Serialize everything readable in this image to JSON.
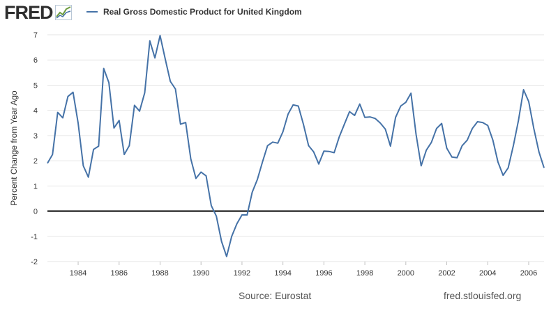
{
  "header": {
    "logo_text": "FRED",
    "series_title": "Real Gross Domestic Product for United Kingdom",
    "series_color": "#4572a7"
  },
  "footer": {
    "source": "Source: Eurostat",
    "site": "fred.stlouisfed.org"
  },
  "chart_data": {
    "type": "line",
    "title": "Real Gross Domestic Product for United Kingdom",
    "xlabel": "",
    "ylabel": "Percent Change from Year Ago",
    "xlim": [
      1982.5,
      2006.75
    ],
    "ylim": [
      -2,
      7
    ],
    "yticks": [
      -2,
      -1,
      0,
      1,
      2,
      3,
      4,
      5,
      6,
      7
    ],
    "xticks": [
      1984,
      1986,
      1988,
      1990,
      1992,
      1994,
      1996,
      1998,
      2000,
      2002,
      2004,
      2006
    ],
    "grid": true,
    "zero_line": true,
    "series": [
      {
        "name": "Real Gross Domestic Product for United Kingdom",
        "color": "#4572a7",
        "x": [
          1982.5,
          1982.75,
          1983,
          1983.25,
          1983.5,
          1983.75,
          1984,
          1984.25,
          1984.5,
          1984.75,
          1985,
          1985.25,
          1985.5,
          1985.75,
          1986,
          1986.25,
          1986.5,
          1986.75,
          1987,
          1987.25,
          1987.5,
          1987.75,
          1988,
          1988.25,
          1988.5,
          1988.75,
          1989,
          1989.25,
          1989.5,
          1989.75,
          1990,
          1990.25,
          1990.5,
          1990.75,
          1991,
          1991.25,
          1991.5,
          1991.75,
          1992,
          1992.25,
          1992.5,
          1992.75,
          1993,
          1993.25,
          1993.5,
          1993.75,
          1994,
          1994.25,
          1994.5,
          1994.75,
          1995,
          1995.25,
          1995.5,
          1995.75,
          1996,
          1996.25,
          1996.5,
          1996.75,
          1997,
          1997.25,
          1997.5,
          1997.75,
          1998,
          1998.25,
          1998.5,
          1998.75,
          1999,
          1999.25,
          1999.5,
          1999.75,
          2000,
          2000.25,
          2000.5,
          2000.75,
          2001,
          2001.25,
          2001.5,
          2001.75,
          2002,
          2002.25,
          2002.5,
          2002.75,
          2003,
          2003.25,
          2003.5,
          2003.75,
          2004,
          2004.25,
          2004.5,
          2004.75,
          2005,
          2005.25,
          2005.5,
          2005.75,
          2006,
          2006.25,
          2006.5,
          2006.75
        ],
        "values": [
          1.9,
          2.25,
          3.92,
          3.7,
          4.55,
          4.72,
          3.5,
          1.8,
          1.35,
          2.45,
          2.58,
          5.66,
          5.1,
          3.3,
          3.6,
          2.25,
          2.6,
          4.2,
          3.97,
          4.7,
          6.76,
          6.08,
          6.97,
          6.05,
          5.15,
          4.85,
          3.45,
          3.52,
          2.08,
          1.3,
          1.55,
          1.4,
          0.22,
          -0.2,
          -1.2,
          -1.8,
          -1.0,
          -0.5,
          -0.15,
          -0.15,
          0.75,
          1.25,
          1.95,
          2.6,
          2.74,
          2.7,
          3.15,
          3.85,
          4.22,
          4.17,
          3.45,
          2.6,
          2.35,
          1.87,
          2.38,
          2.37,
          2.32,
          2.95,
          3.45,
          3.95,
          3.8,
          4.25,
          3.72,
          3.74,
          3.68,
          3.5,
          3.25,
          2.58,
          3.72,
          4.17,
          4.32,
          4.68,
          3.05,
          1.8,
          2.42,
          2.73,
          3.28,
          3.48,
          2.5,
          2.15,
          2.12,
          2.6,
          2.82,
          3.28,
          3.55,
          3.52,
          3.4,
          2.82,
          1.95,
          1.42,
          1.72,
          2.6,
          3.6,
          4.82,
          4.35,
          3.28,
          2.35,
          1.72
        ]
      }
    ]
  }
}
